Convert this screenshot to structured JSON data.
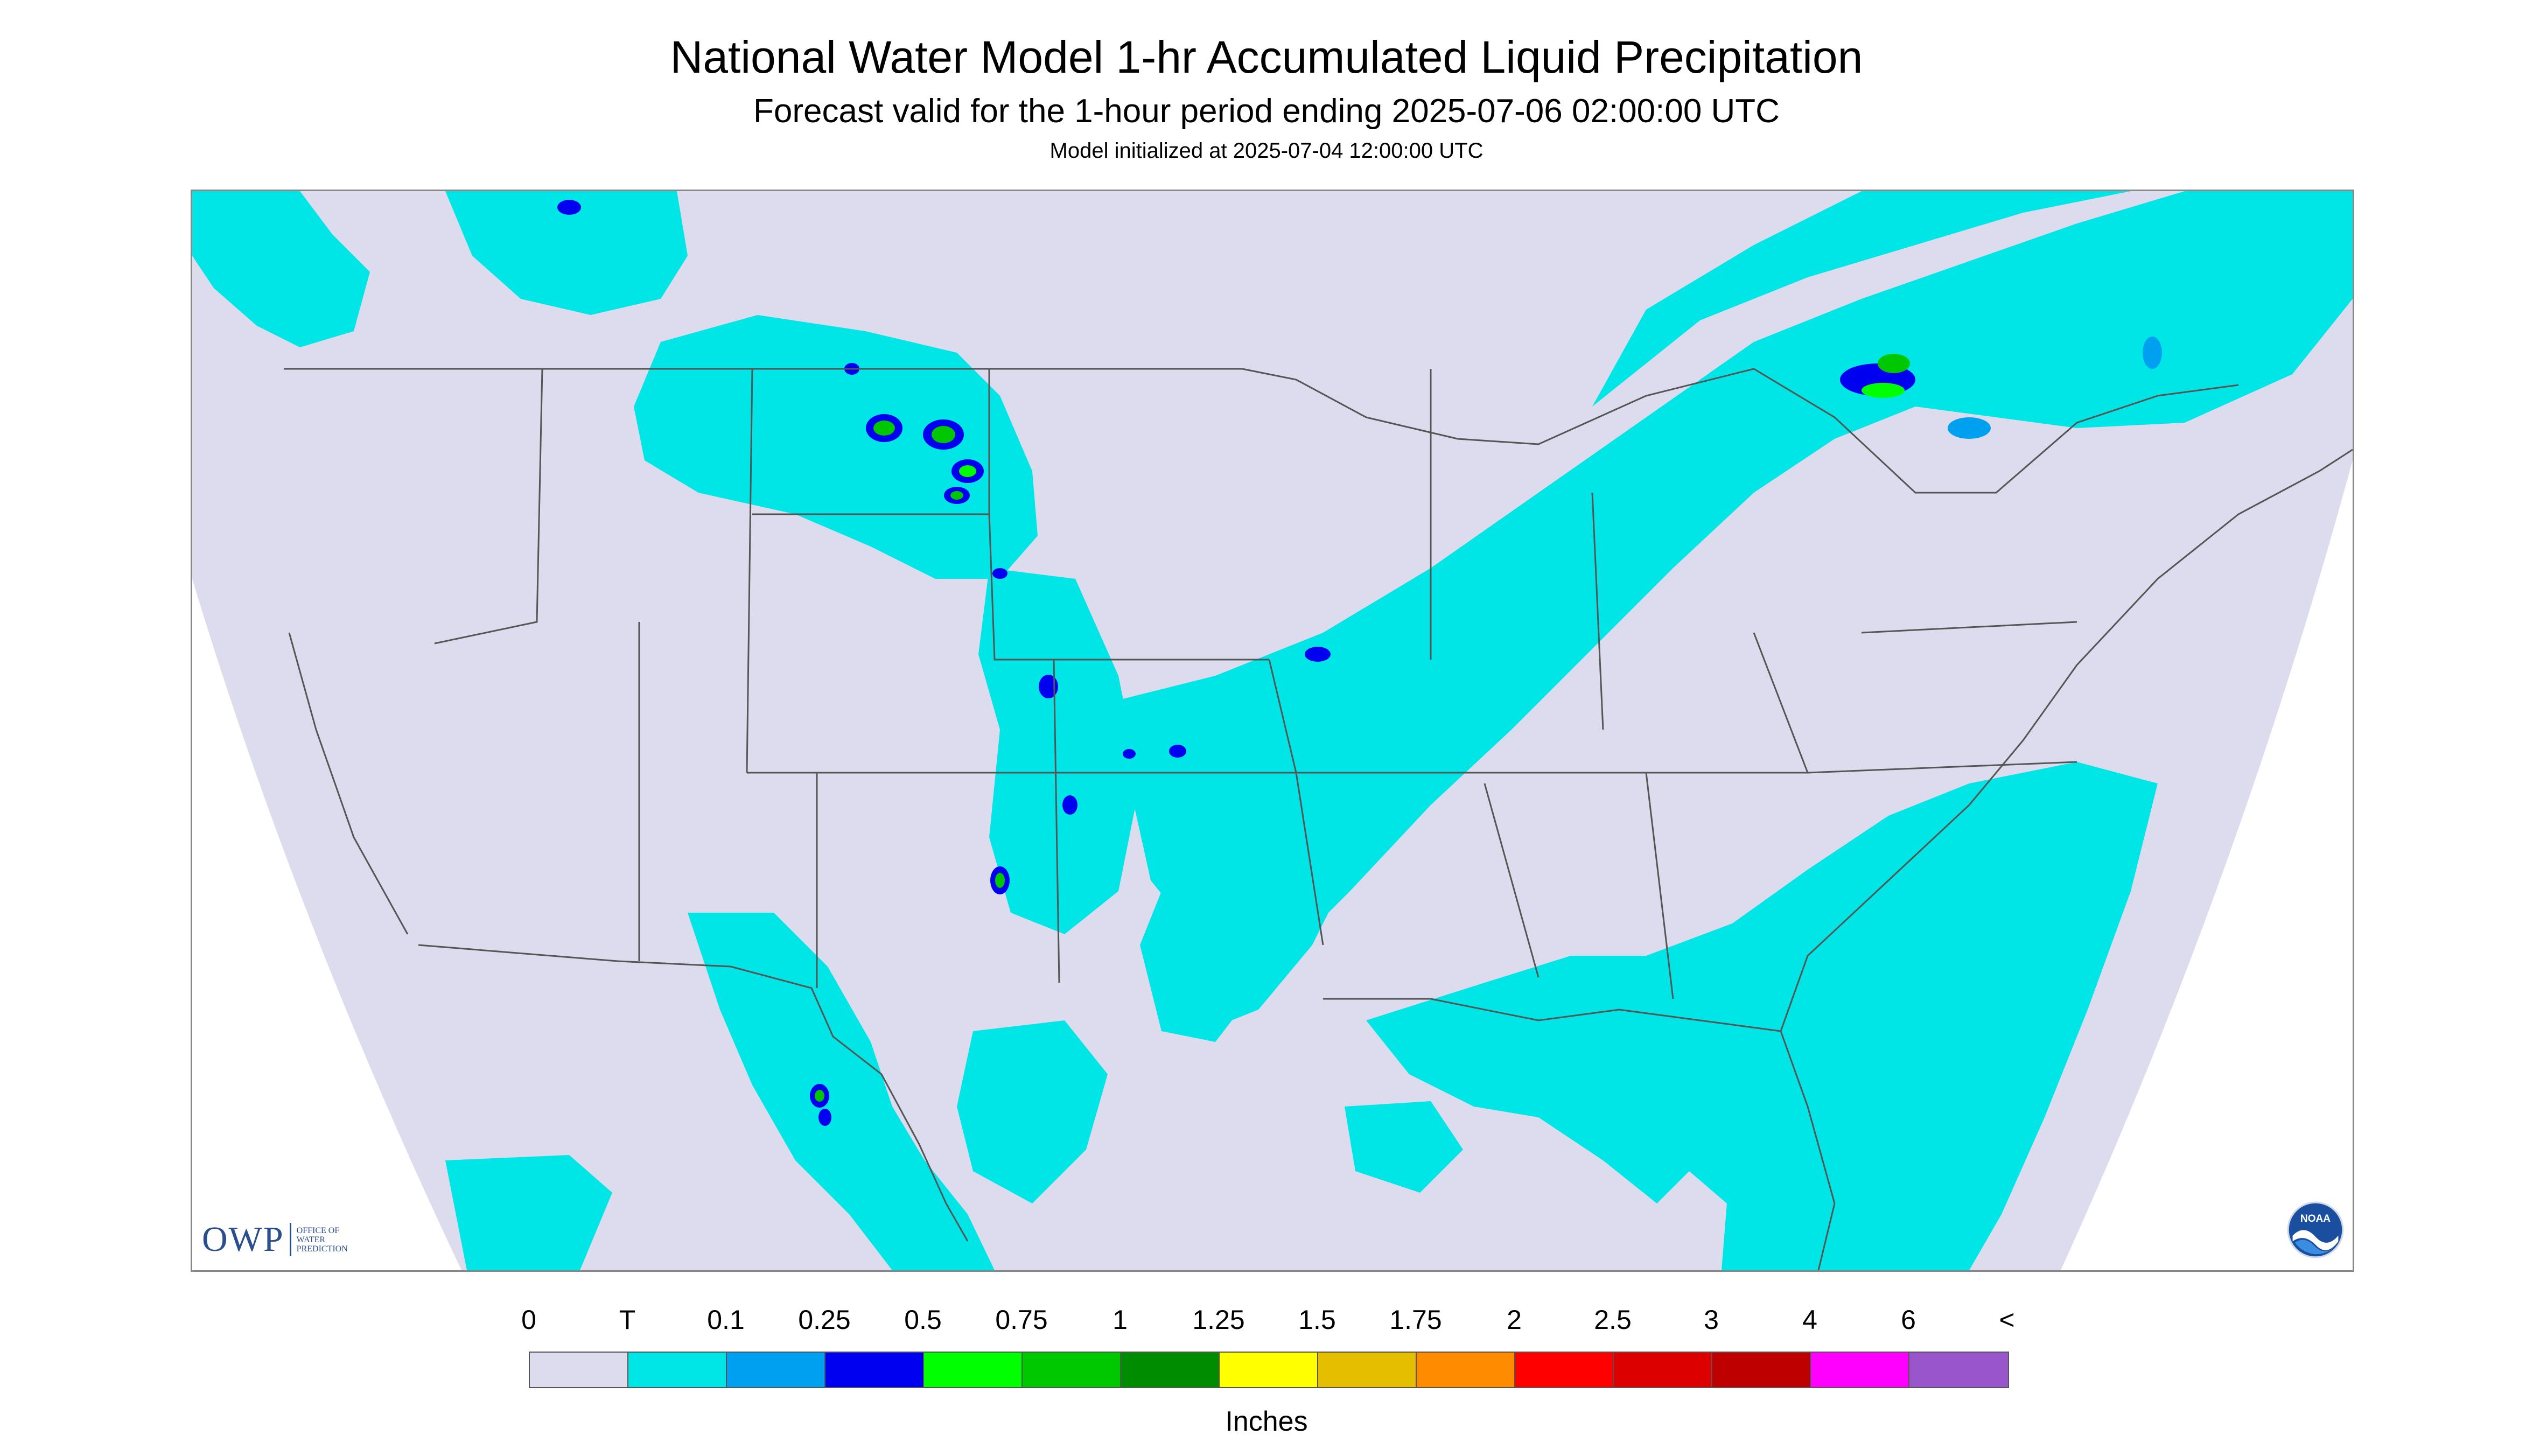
{
  "title": "National Water Model 1-hr Accumulated Liquid Precipitation",
  "subtitle": "Forecast valid for the 1-hour period ending 2025-07-06 02:00:00 UTC",
  "model_init": "Model initialized at 2025-07-04 12:00:00 UTC",
  "colors": {
    "background": "#dcdcee",
    "map_outside": "#ffffff",
    "boundaries": "#555555",
    "frame": "#888888"
  },
  "legend": {
    "tick_labels": [
      "0",
      "T",
      "0.1",
      "0.25",
      "0.5",
      "0.75",
      "1",
      "1.25",
      "1.5",
      "1.75",
      "2",
      "2.5",
      "3",
      "4",
      "6",
      "<"
    ],
    "colors": [
      "#dcdcee",
      "#00e5e5",
      "#00a0f0",
      "#0000f0",
      "#00ff00",
      "#00c800",
      "#008c00",
      "#ffff00",
      "#e6be00",
      "#ff8c00",
      "#ff0000",
      "#dc0000",
      "#be0000",
      "#ff00ff",
      "#9955cc"
    ],
    "units": "Inches"
  },
  "logos": {
    "owp_text": "OWP",
    "owp_subtext": [
      "OFFICE OF",
      "WATER",
      "PREDICTION"
    ],
    "noaa_text": "NOAA"
  },
  "map": {
    "region": "Contiguous United States",
    "icons": [
      "owp-logo-icon",
      "noaa-logo-icon"
    ]
  }
}
